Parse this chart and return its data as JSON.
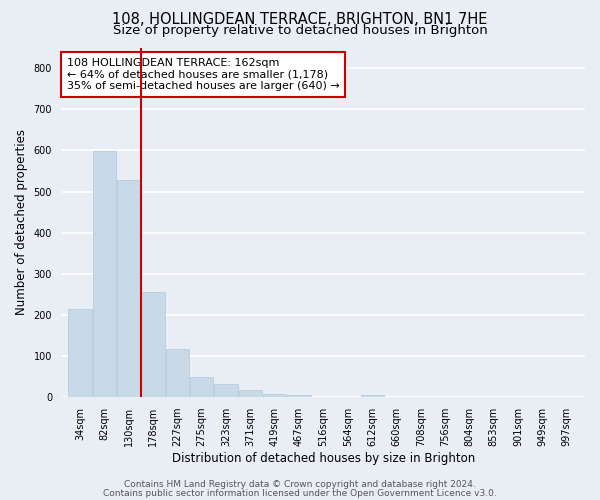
{
  "title": "108, HOLLINGDEAN TERRACE, BRIGHTON, BN1 7HE",
  "subtitle": "Size of property relative to detached houses in Brighton",
  "xlabel": "Distribution of detached houses by size in Brighton",
  "ylabel": "Number of detached properties",
  "bar_values": [
    215,
    598,
    527,
    255,
    117,
    50,
    33,
    18,
    8,
    5,
    0,
    0,
    5,
    0,
    0,
    0,
    0,
    0,
    0,
    0
  ],
  "bin_labels": [
    "34sqm",
    "82sqm",
    "130sqm",
    "178sqm",
    "227sqm",
    "275sqm",
    "323sqm",
    "371sqm",
    "419sqm",
    "467sqm",
    "516sqm",
    "564sqm",
    "612sqm",
    "660sqm",
    "708sqm",
    "756sqm",
    "804sqm",
    "853sqm",
    "901sqm",
    "949sqm",
    "997sqm"
  ],
  "bar_color": "#c8d9e8",
  "bar_edge_color": "#b0c8e0",
  "marker_line_color": "#cc0000",
  "annotation_box_text": "108 HOLLINGDEAN TERRACE: 162sqm\n← 64% of detached houses are smaller (1,178)\n35% of semi-detached houses are larger (640) →",
  "annotation_box_color": "#ffffff",
  "annotation_box_edgecolor": "#cc0000",
  "ylim": [
    0,
    850
  ],
  "yticks": [
    0,
    100,
    200,
    300,
    400,
    500,
    600,
    700,
    800
  ],
  "footer_line1": "Contains HM Land Registry data © Crown copyright and database right 2024.",
  "footer_line2": "Contains public sector information licensed under the Open Government Licence v3.0.",
  "bg_color": "#e8eef4",
  "plot_bg_color": "#e8eef4",
  "grid_color": "#ffffff",
  "title_fontsize": 10.5,
  "subtitle_fontsize": 9.5,
  "axis_label_fontsize": 8.5,
  "tick_label_fontsize": 7,
  "annotation_fontsize": 8,
  "footer_fontsize": 6.5
}
